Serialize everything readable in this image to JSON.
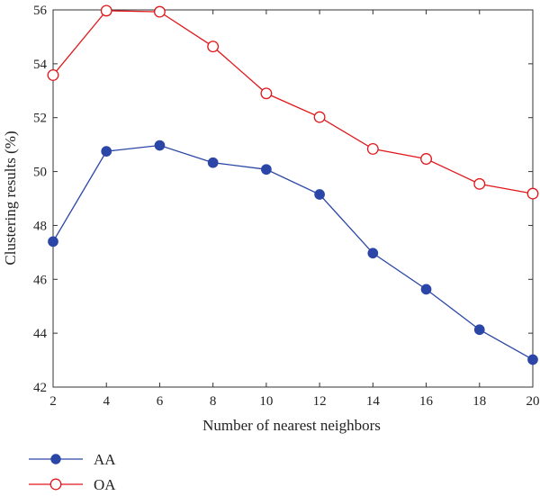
{
  "chart_data": {
    "type": "line",
    "xlabel": "Number of nearest neighbors",
    "ylabel": "Clustering results (%)",
    "x": [
      2,
      4,
      6,
      8,
      10,
      12,
      14,
      16,
      18,
      20
    ],
    "xlim": [
      2,
      20
    ],
    "ylim": [
      42,
      56
    ],
    "xticks": [
      "2",
      "4",
      "6",
      "8",
      "10",
      "12",
      "14",
      "16",
      "18",
      "20"
    ],
    "yticks": [
      "42",
      "44",
      "46",
      "48",
      "50",
      "52",
      "54",
      "56"
    ],
    "grid": false,
    "legend_placement": "bottom-left",
    "series": [
      {
        "name": "AA",
        "color": "#2b46a6",
        "marker": "filled-circle",
        "values": [
          47.4,
          50.75,
          50.97,
          50.33,
          50.08,
          49.15,
          46.97,
          45.63,
          44.13,
          43.02
        ]
      },
      {
        "name": "OA",
        "color": "#e0181b",
        "marker": "open-circle",
        "values": [
          53.58,
          55.97,
          55.93,
          54.64,
          52.9,
          52.02,
          50.84,
          50.47,
          49.54,
          49.18
        ]
      }
    ]
  }
}
